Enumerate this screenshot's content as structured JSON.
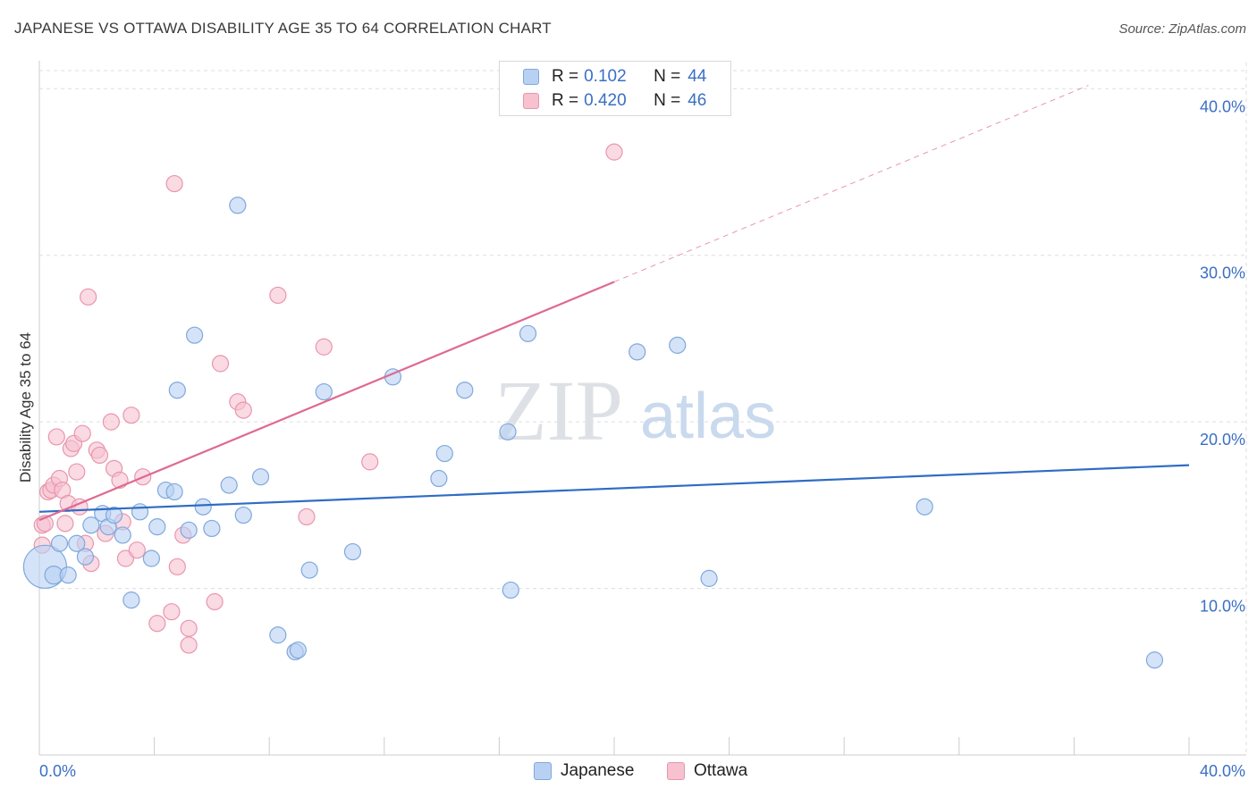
{
  "title": "JAPANESE VS OTTAWA DISABILITY AGE 35 TO 64 CORRELATION CHART",
  "source": "Source: ZipAtlas.com",
  "watermark": {
    "zip": "ZIP",
    "atlas": "atlas"
  },
  "legend": {
    "r_label": "R =",
    "n_label": "N =",
    "entries": [
      {
        "name": "Japanese",
        "r": "0.102",
        "n": "44"
      },
      {
        "name": "Ottawa",
        "r": "0.420",
        "n": "46"
      }
    ]
  },
  "colors": {
    "japanese_fill": "#b8d1f3",
    "japanese_stroke": "#7fa8dc",
    "japanese_line": "#2f6cc4",
    "ottawa_fill": "#f7c1d0",
    "ottawa_stroke": "#e896ae",
    "ottawa_line": "#e06892",
    "grid": "#dddddd",
    "tick_text": "#3a6fc4"
  },
  "chart_data": {
    "type": "scatter",
    "title": "JAPANESE VS OTTAWA DISABILITY AGE 35 TO 64 CORRELATION CHART",
    "xlabel": "",
    "ylabel": "Disability Age 35 to 64",
    "xlim": [
      0,
      40
    ],
    "ylim": [
      0,
      42
    ],
    "x_tick_labels": [
      "0.0%",
      "40.0%"
    ],
    "y_ticks": [
      10,
      20,
      30,
      40
    ],
    "y_tick_labels": [
      "10.0%",
      "20.0%",
      "30.0%",
      "40.0%"
    ],
    "grid": true,
    "series": [
      {
        "name": "Japanese",
        "r": 0.102,
        "n": 44,
        "trend": {
          "x0": 0,
          "y0": 14.6,
          "x1": 40,
          "y1": 17.4,
          "dashed_from": null
        },
        "points": [
          [
            0.2,
            11.3,
            24
          ],
          [
            0.5,
            10.8,
            10
          ],
          [
            0.7,
            12.7,
            9
          ],
          [
            1.0,
            10.8,
            9
          ],
          [
            1.3,
            12.7,
            9
          ],
          [
            1.6,
            11.9,
            9
          ],
          [
            1.8,
            13.8,
            9
          ],
          [
            2.2,
            14.5,
            9
          ],
          [
            2.4,
            13.7,
            9
          ],
          [
            2.6,
            14.4,
            9
          ],
          [
            2.9,
            13.2,
            9
          ],
          [
            3.2,
            9.3,
            9
          ],
          [
            3.5,
            14.6,
            9
          ],
          [
            3.9,
            11.8,
            9
          ],
          [
            4.1,
            13.7,
            9
          ],
          [
            4.4,
            15.9,
            9
          ],
          [
            4.7,
            15.8,
            9
          ],
          [
            4.8,
            21.9,
            9
          ],
          [
            5.2,
            13.5,
            9
          ],
          [
            5.4,
            25.2,
            9
          ],
          [
            5.7,
            14.9,
            9
          ],
          [
            6.0,
            13.6,
            9
          ],
          [
            6.6,
            16.2,
            9
          ],
          [
            6.9,
            33.0,
            9
          ],
          [
            7.1,
            14.4,
            9
          ],
          [
            7.7,
            16.7,
            9
          ],
          [
            8.3,
            7.2,
            9
          ],
          [
            8.9,
            6.2,
            9
          ],
          [
            9.0,
            6.3,
            9
          ],
          [
            9.4,
            11.1,
            9
          ],
          [
            9.9,
            21.8,
            9
          ],
          [
            10.9,
            12.2,
            9
          ],
          [
            12.3,
            22.7,
            9
          ],
          [
            13.9,
            16.6,
            9
          ],
          [
            14.1,
            18.1,
            9
          ],
          [
            14.8,
            21.9,
            9
          ],
          [
            16.3,
            19.4,
            9
          ],
          [
            16.4,
            9.9,
            9
          ],
          [
            17.0,
            25.3,
            9
          ],
          [
            20.8,
            24.2,
            9
          ],
          [
            22.2,
            24.6,
            9
          ],
          [
            23.3,
            10.6,
            9
          ],
          [
            30.8,
            14.9,
            9
          ],
          [
            38.8,
            5.7,
            9
          ]
        ]
      },
      {
        "name": "Ottawa",
        "r": 0.42,
        "n": 46,
        "trend": {
          "x0": 0,
          "y0": 14.1,
          "x1": 36.5,
          "y1": 40.2,
          "dashed_from": 20.0
        },
        "points": [
          [
            0.1,
            13.8,
            9
          ],
          [
            0.1,
            12.6,
            9
          ],
          [
            0.3,
            15.8,
            9
          ],
          [
            0.4,
            15.9,
            9
          ],
          [
            0.5,
            16.2,
            9
          ],
          [
            0.6,
            19.1,
            9
          ],
          [
            0.7,
            16.6,
            9
          ],
          [
            0.8,
            15.9,
            9
          ],
          [
            0.9,
            13.9,
            9
          ],
          [
            1.0,
            15.1,
            9
          ],
          [
            1.1,
            18.4,
            9
          ],
          [
            1.2,
            18.7,
            9
          ],
          [
            1.3,
            17.0,
            9
          ],
          [
            1.4,
            14.9,
            9
          ],
          [
            1.5,
            19.3,
            9
          ],
          [
            1.6,
            12.7,
            9
          ],
          [
            1.7,
            27.5,
            9
          ],
          [
            1.8,
            11.5,
            9
          ],
          [
            2.0,
            18.3,
            9
          ],
          [
            2.1,
            18.0,
            9
          ],
          [
            2.3,
            13.3,
            9
          ],
          [
            2.5,
            20.0,
            9
          ],
          [
            2.6,
            17.2,
            9
          ],
          [
            2.8,
            16.5,
            9
          ],
          [
            2.9,
            14.0,
            9
          ],
          [
            3.0,
            11.8,
            9
          ],
          [
            3.2,
            20.4,
            9
          ],
          [
            3.4,
            12.3,
            9
          ],
          [
            3.6,
            16.7,
            9
          ],
          [
            4.1,
            7.9,
            9
          ],
          [
            4.6,
            8.6,
            9
          ],
          [
            4.7,
            34.3,
            9
          ],
          [
            4.8,
            11.3,
            9
          ],
          [
            5.0,
            13.2,
            9
          ],
          [
            5.2,
            7.6,
            9
          ],
          [
            5.2,
            6.6,
            9
          ],
          [
            6.1,
            9.2,
            9
          ],
          [
            6.3,
            23.5,
            9
          ],
          [
            6.9,
            21.2,
            9
          ],
          [
            7.1,
            20.7,
            9
          ],
          [
            8.3,
            27.6,
            9
          ],
          [
            9.3,
            14.3,
            9
          ],
          [
            9.9,
            24.5,
            9
          ],
          [
            11.5,
            17.6,
            9
          ],
          [
            20.0,
            36.2,
            9
          ],
          [
            0.2,
            13.9,
            9
          ]
        ]
      }
    ]
  }
}
